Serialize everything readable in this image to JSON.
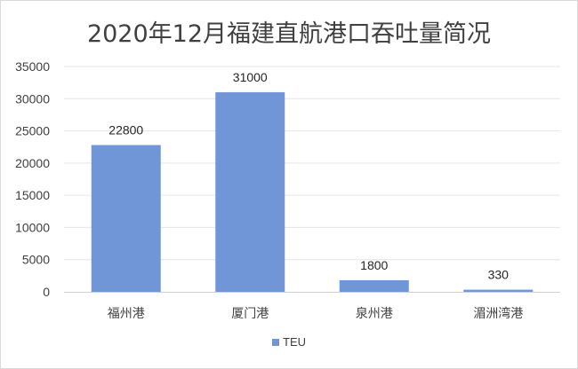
{
  "chart_data": {
    "type": "bar",
    "title": "2020年12月福建直航港口吞吐量简况",
    "categories": [
      "福州港",
      "厦门港",
      "泉州港",
      "湄洲湾港"
    ],
    "series": [
      {
        "name": "TEU",
        "values": [
          22800,
          31000,
          1800,
          330
        ],
        "color": "#7096d8"
      }
    ],
    "xlabel": "",
    "ylabel": "",
    "ylim": [
      0,
      35000
    ],
    "yticks": [
      0,
      5000,
      10000,
      15000,
      20000,
      25000,
      30000,
      35000
    ],
    "grid": true,
    "legend_position": "bottom",
    "data_labels": true
  }
}
